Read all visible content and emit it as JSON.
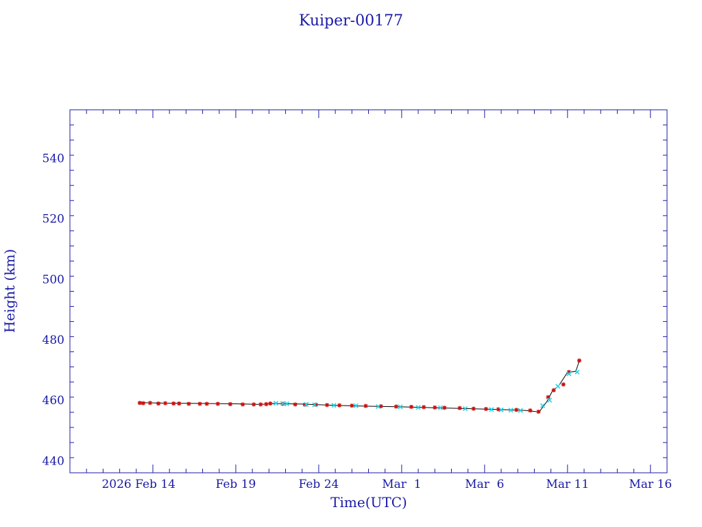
{
  "chart_data": {
    "type": "scatter",
    "title": "Kuiper-00177",
    "xlabel": "Time(UTC)",
    "ylabel": "Height (km)",
    "x_unit": "date",
    "xlim": [
      "2026-02-09",
      "2026-03-17"
    ],
    "ylim": [
      436,
      556
    ],
    "x_ticks": [
      {
        "date": "2026-02-14",
        "label": "2026 Feb 14"
      },
      {
        "date": "2026-02-19",
        "label": "Feb 19"
      },
      {
        "date": "2026-02-24",
        "label": "Feb 24"
      },
      {
        "date": "2026-03-01",
        "label": "Mar  1"
      },
      {
        "date": "2026-03-06",
        "label": "Mar  6"
      },
      {
        "date": "2026-03-11",
        "label": "Mar 11"
      },
      {
        "date": "2026-03-16",
        "label": "Mar 16"
      }
    ],
    "y_ticks": [
      440,
      460,
      480,
      500,
      520,
      540
    ],
    "grid": false,
    "colors": {
      "axis": "#1a1aa6",
      "line": "#000000",
      "series_a": "#cc1111",
      "series_b": "#22d4e6"
    },
    "line": {
      "x": [
        "2026-02-13T06:00",
        "2026-02-15T00:00",
        "2026-02-17T00:00",
        "2026-02-19T00:00",
        "2026-02-20T12:00",
        "2026-02-21T06:00",
        "2026-02-23T00:00",
        "2026-02-25T00:00",
        "2026-02-27T00:00",
        "2026-03-01T00:00",
        "2026-03-03T00:00",
        "2026-03-05T00:00",
        "2026-03-07T00:00",
        "2026-03-08T12:00",
        "2026-03-09T07:00",
        "2026-03-09T18:00",
        "2026-03-10T02:00",
        "2026-03-10T12:00",
        "2026-03-11T00:00",
        "2026-03-11T12:00",
        "2026-03-11T17:00"
      ],
      "y": [
        459.2,
        459.0,
        458.9,
        458.8,
        458.6,
        458.9,
        458.7,
        458.3,
        458.0,
        457.8,
        457.5,
        457.2,
        456.9,
        456.6,
        456.1,
        459.5,
        463.0,
        465.0,
        469.2,
        469.5,
        473.0
      ]
    },
    "series": [
      {
        "marker": "star",
        "color": "#cc1111",
        "x": [
          "2026-02-13T05:00",
          "2026-02-13T10:00",
          "2026-02-13T20:00",
          "2026-02-14T08:00",
          "2026-02-14T18:00",
          "2026-02-15T06:00",
          "2026-02-15T14:00",
          "2026-02-16T04:00",
          "2026-02-16T20:00",
          "2026-02-17T06:00",
          "2026-02-17T22:00",
          "2026-02-18T16:00",
          "2026-02-19T10:00",
          "2026-02-20T02:00",
          "2026-02-20T12:00",
          "2026-02-20T20:00",
          "2026-02-21T02:00",
          "2026-02-21T20:00",
          "2026-02-22T14:00",
          "2026-02-23T04:00",
          "2026-02-23T20:00",
          "2026-02-24T12:00",
          "2026-02-25T06:00",
          "2026-02-26T00:00",
          "2026-02-26T20:00",
          "2026-02-27T18:00",
          "2026-02-28T16:00",
          "2026-03-01T14:00",
          "2026-03-02T08:00",
          "2026-03-03T00:00",
          "2026-03-03T14:00",
          "2026-03-04T12:00",
          "2026-03-05T08:00",
          "2026-03-06T02:00",
          "2026-03-06T20:00",
          "2026-03-07T22:00",
          "2026-03-08T18:00",
          "2026-03-09T06:00",
          "2026-03-09T20:00",
          "2026-03-10T04:00",
          "2026-03-10T18:00",
          "2026-03-11T02:00",
          "2026-03-11T17:00"
        ],
        "y": [
          459.1,
          459.0,
          459.1,
          458.9,
          459.0,
          458.9,
          458.9,
          458.8,
          458.8,
          458.8,
          458.8,
          458.7,
          458.6,
          458.6,
          458.6,
          458.7,
          458.9,
          458.8,
          458.6,
          458.5,
          458.5,
          458.4,
          458.3,
          458.2,
          458.1,
          458.0,
          457.9,
          457.8,
          457.7,
          457.6,
          457.5,
          457.4,
          457.2,
          457.1,
          457.0,
          456.8,
          456.6,
          456.2,
          461.0,
          463.3,
          465.2,
          469.3,
          473.1
        ]
      },
      {
        "marker": "cross",
        "color": "#22d4e6",
        "x": [
          "2026-02-21T10:00",
          "2026-02-21T20:00",
          "2026-02-22T02:00",
          "2026-02-23T06:00",
          "2026-02-23T18:00",
          "2026-02-24T22:00",
          "2026-02-26T06:00",
          "2026-02-27T14:00",
          "2026-02-28T22:00",
          "2026-03-02T00:00",
          "2026-03-03T08:00",
          "2026-03-04T20:00",
          "2026-03-06T10:00",
          "2026-03-07T00:00",
          "2026-03-07T14:00",
          "2026-03-08T04:00",
          "2026-03-09T12:00",
          "2026-03-09T22:00",
          "2026-03-10T10:00",
          "2026-03-11T02:00",
          "2026-03-11T14:00"
        ],
        "y": [
          459.0,
          458.9,
          458.8,
          458.6,
          458.5,
          458.3,
          458.2,
          457.9,
          457.8,
          457.6,
          457.5,
          457.2,
          456.9,
          456.8,
          456.7,
          456.6,
          458.2,
          460.0,
          464.6,
          468.7,
          469.3
        ]
      }
    ]
  }
}
